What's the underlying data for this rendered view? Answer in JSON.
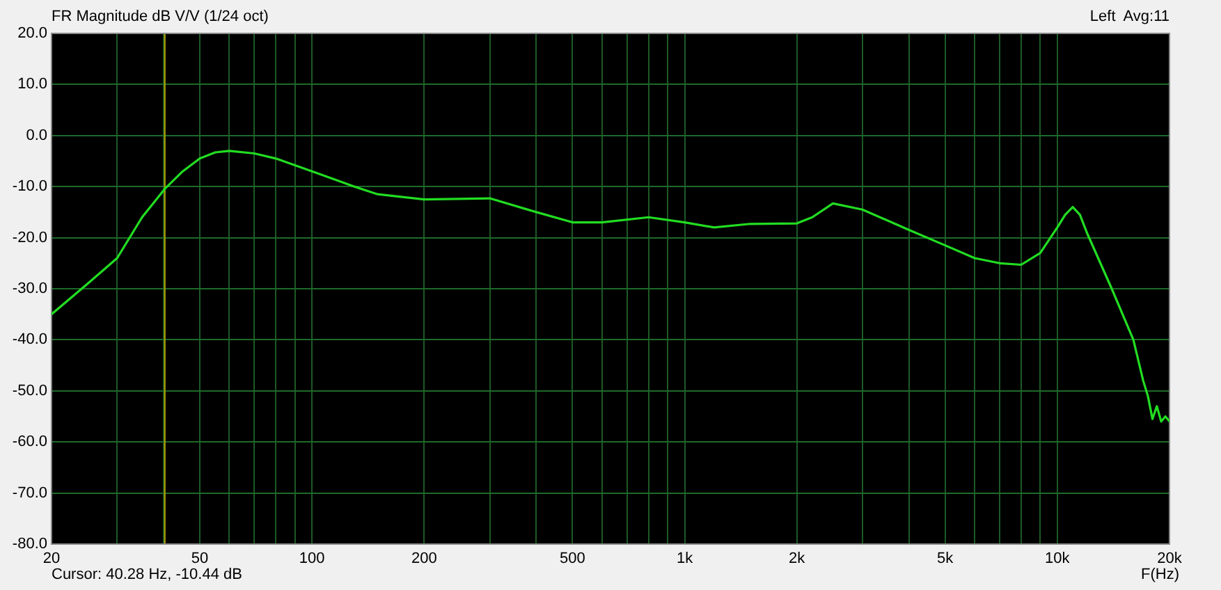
{
  "chart_data": {
    "type": "line",
    "title": "FR Magnitude dB V/V (1/24 oct)",
    "xlabel": "F(Hz)",
    "annotations": [
      "Left  Avg:11",
      "Cursor: 40.28 Hz, -10.44 dB"
    ],
    "log": "x",
    "grid": true,
    "legend": false,
    "marker": "none",
    "line_style": "solid",
    "xlim": [
      20,
      20000
    ],
    "xticks": [
      20,
      {
        "value": 30,
        "label": null
      },
      {
        "value": 40,
        "label": null
      },
      50,
      {
        "value": 60,
        "label": null
      },
      {
        "value": 70,
        "label": null
      },
      {
        "value": 80,
        "label": null
      },
      {
        "value": 90,
        "label": null
      },
      100,
      200,
      {
        "value": 300,
        "label": null
      },
      {
        "value": 400,
        "label": null
      },
      500,
      {
        "value": 600,
        "label": null
      },
      {
        "value": 700,
        "label": null
      },
      {
        "value": 800,
        "label": null
      },
      {
        "value": 900,
        "label": null
      },
      {
        "value": 1000,
        "label": "1k"
      },
      {
        "value": 2000,
        "label": "2k"
      },
      {
        "value": 3000,
        "label": null
      },
      {
        "value": 4000,
        "label": null
      },
      {
        "value": 5000,
        "label": "5k"
      },
      {
        "value": 6000,
        "label": null
      },
      {
        "value": 7000,
        "label": null
      },
      {
        "value": 8000,
        "label": null
      },
      {
        "value": 9000,
        "label": null
      },
      {
        "value": 10000,
        "label": "10k"
      },
      {
        "value": 20000,
        "label": "20k"
      }
    ],
    "ylim": [
      -80,
      20
    ],
    "yticks": [
      {
        "value": -80,
        "label": "-80.0"
      },
      {
        "value": -70,
        "label": "-70.0"
      },
      {
        "value": -60,
        "label": "-60.0"
      },
      {
        "value": -50,
        "label": "-50.0"
      },
      {
        "value": -40,
        "label": "-40.0"
      },
      {
        "value": -30,
        "label": "-30.0"
      },
      {
        "value": -20,
        "label": "-20.0"
      },
      {
        "value": -10,
        "label": "-10.0"
      },
      {
        "value": 0,
        "label": "0.0"
      },
      {
        "value": 10,
        "label": "10.0"
      },
      {
        "value": 20,
        "label": "20.0"
      }
    ],
    "ref_lines": [
      {
        "axis": "x",
        "value": 40.28,
        "label": null,
        "color": "#b8a800"
      }
    ],
    "series": [
      {
        "color": "#22dd22",
        "x": [
          20,
          25,
          30,
          35,
          40.28,
          45,
          50,
          55,
          60,
          70,
          80,
          100,
          130,
          150,
          200,
          300,
          400,
          500,
          600,
          800,
          1000,
          1200,
          1500,
          2000,
          2200,
          2500,
          3000,
          4000,
          5000,
          6000,
          7000,
          8000,
          9000,
          10000,
          10500,
          11000,
          11500,
          12000,
          14000,
          16000,
          17000,
          17500,
          18000,
          18500,
          19000,
          19500,
          20000
        ],
        "values": [
          -35,
          -29,
          -24,
          -16,
          -10.44,
          -7,
          -4.5,
          -3.3,
          -3,
          -3.5,
          -4.5,
          -7,
          -10,
          -11.5,
          -12.5,
          -12.3,
          -15,
          -17,
          -17,
          -16,
          -17,
          -18,
          -17.3,
          -17.2,
          -16,
          -13.3,
          -14.5,
          -18.5,
          -21.5,
          -24,
          -25,
          -25.3,
          -23,
          -18,
          -15.5,
          -14,
          -15.5,
          -19,
          -30,
          -40,
          -48,
          -51,
          -55.5,
          -53,
          -56,
          -55,
          -56
        ]
      }
    ]
  }
}
